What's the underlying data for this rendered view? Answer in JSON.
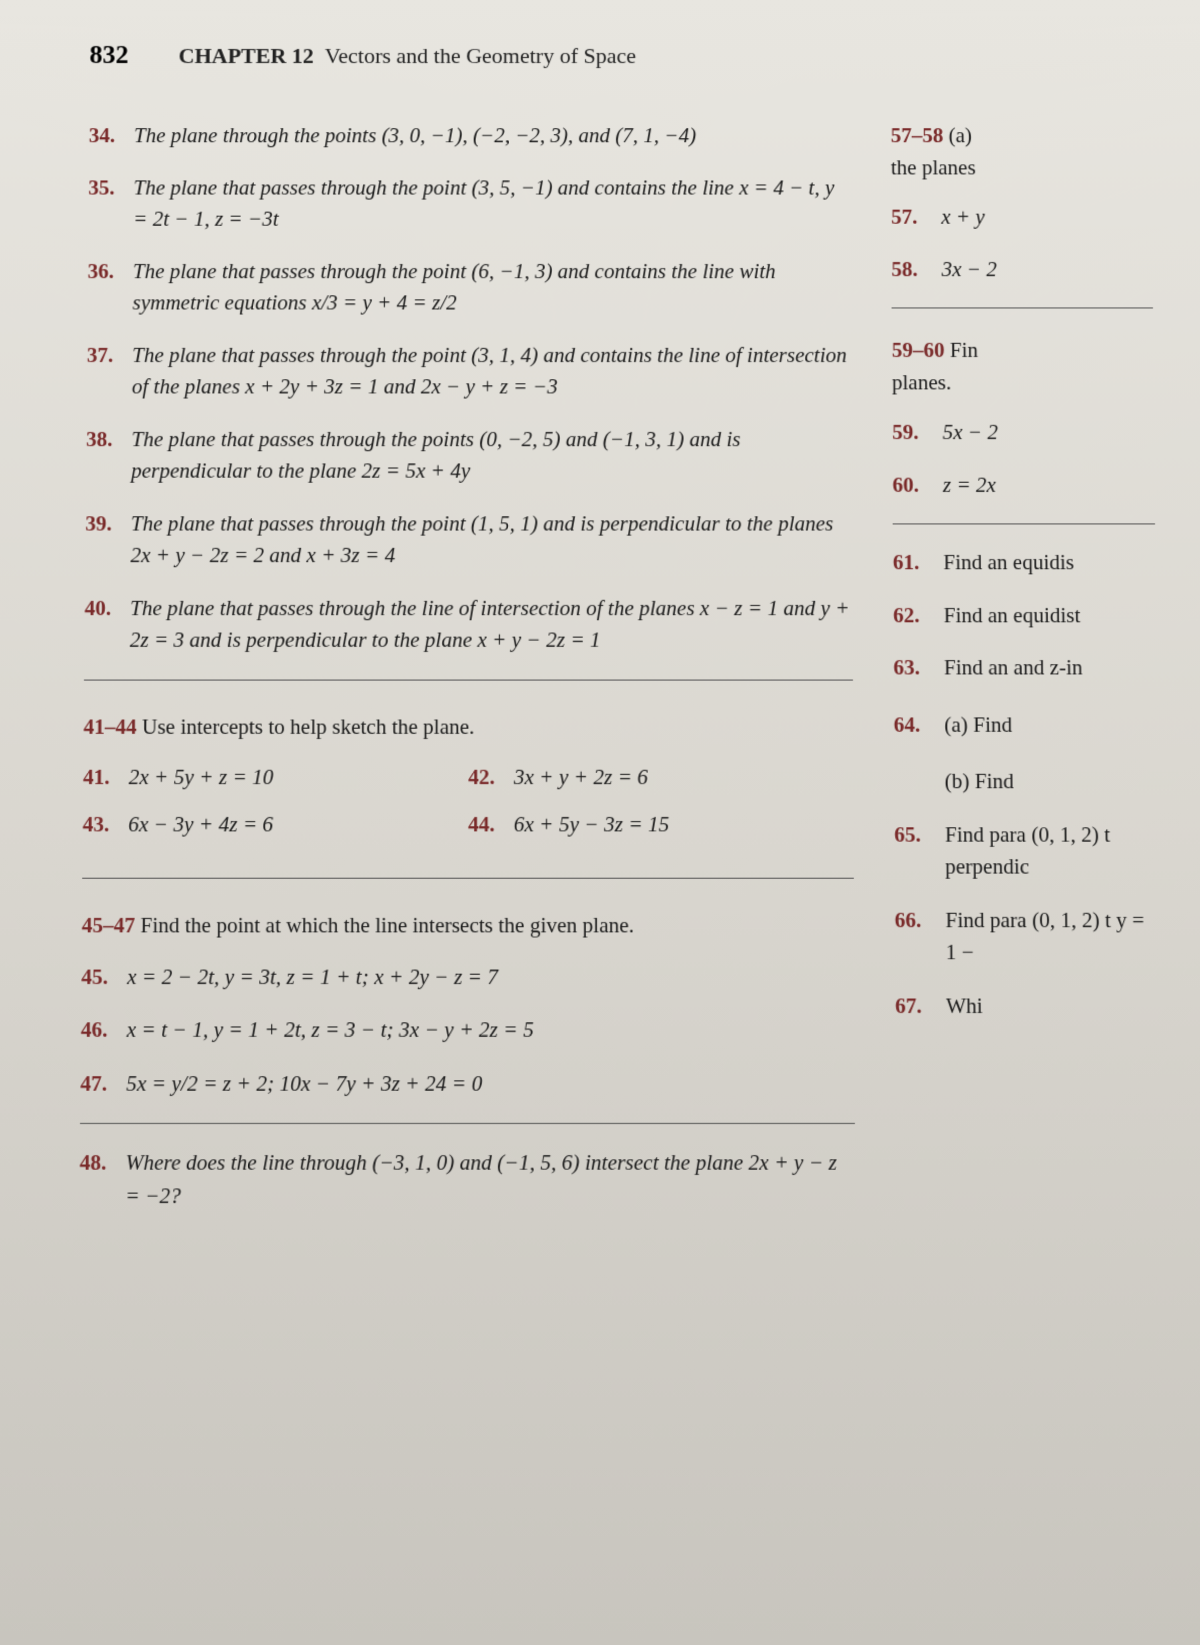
{
  "page_number": "832",
  "chapter_label": "CHAPTER 12",
  "chapter_title": "Vectors and the Geometry of Space",
  "colors": {
    "problem_number": "#7a2a2a",
    "text": "#1a1a1a",
    "page_bg_top": "#e8e6e0",
    "page_bg_bottom": "#c8c5be"
  },
  "left": {
    "problems_a": [
      {
        "num": "34.",
        "text": "The plane through the points (3, 0, −1), (−2, −2, 3), and (7, 1, −4)"
      },
      {
        "num": "35.",
        "text": "The plane that passes through the point (3, 5, −1) and contains the line x = 4 − t, y = 2t − 1, z = −3t"
      },
      {
        "num": "36.",
        "text": "The plane that passes through the point (6, −1, 3) and contains the line with symmetric equations x/3 = y + 4 = z/2"
      },
      {
        "num": "37.",
        "text": "The plane that passes through the point (3, 1, 4) and contains the line of intersection of the planes x + 2y + 3z = 1 and 2x − y + z = −3"
      },
      {
        "num": "38.",
        "text": "The plane that passes through the points (0, −2, 5) and (−1, 3, 1) and is perpendicular to the plane 2z = 5x + 4y"
      },
      {
        "num": "39.",
        "text": "The plane that passes through the point (1, 5, 1) and is perpendicular to the planes 2x + y − 2z = 2 and x + 3z = 4"
      },
      {
        "num": "40.",
        "text": "The plane that passes through the line of intersection of the planes x − z = 1 and y + 2z = 3 and is perpendicular to the plane x + y − 2z = 1"
      }
    ],
    "section_41_44": {
      "range": "41–44",
      "instr": "Use intercepts to help sketch the plane.",
      "items": [
        {
          "num": "41.",
          "text": "2x + 5y + z = 10"
        },
        {
          "num": "42.",
          "text": "3x + y + 2z = 6"
        },
        {
          "num": "43.",
          "text": "6x − 3y + 4z = 6"
        },
        {
          "num": "44.",
          "text": "6x + 5y − 3z = 15"
        }
      ]
    },
    "section_45_47": {
      "range": "45–47",
      "instr": "Find the point at which the line intersects the given plane.",
      "items": [
        {
          "num": "45.",
          "text": "x = 2 − 2t,   y = 3t,   z = 1 + t;   x + 2y − z = 7"
        },
        {
          "num": "46.",
          "text": "x = t − 1,   y = 1 + 2t,   z = 3 − t;   3x − y + 2z = 5"
        },
        {
          "num": "47.",
          "text": "5x = y/2 = z + 2;   10x − 7y + 3z + 24 = 0"
        }
      ]
    },
    "problem_48": {
      "num": "48.",
      "text": "Where does the line through (−3, 1, 0) and (−1, 5, 6) intersect the plane 2x + y − z = −2?"
    }
  },
  "right": {
    "section_57_58": {
      "range": "57–58",
      "tail_a": "(a)",
      "tail_b": "the planes",
      "items": [
        {
          "num": "57.",
          "text": "x + y"
        },
        {
          "num": "58.",
          "text": "3x − 2"
        }
      ]
    },
    "section_59_60": {
      "range": "59–60",
      "tail": "Fin",
      "sub": "planes.",
      "items": [
        {
          "num": "59.",
          "text": "5x − 2"
        },
        {
          "num": "60.",
          "text": "z = 2x"
        }
      ]
    },
    "items_61_66": [
      {
        "num": "61.",
        "text": "Find an equidis"
      },
      {
        "num": "62.",
        "text": "Find an equidist"
      },
      {
        "num": "63.",
        "text": "Find an and z-in"
      },
      {
        "num": "64.",
        "text": "(a) Find"
      },
      {
        "num": "",
        "text": "(b) Find"
      },
      {
        "num": "65.",
        "text": "Find para (0, 1, 2) t perpendic"
      },
      {
        "num": "66.",
        "text": "Find para (0, 1, 2) t y = 1 −"
      }
    ],
    "item_67": {
      "num": "67.",
      "text": "Whi"
    }
  }
}
